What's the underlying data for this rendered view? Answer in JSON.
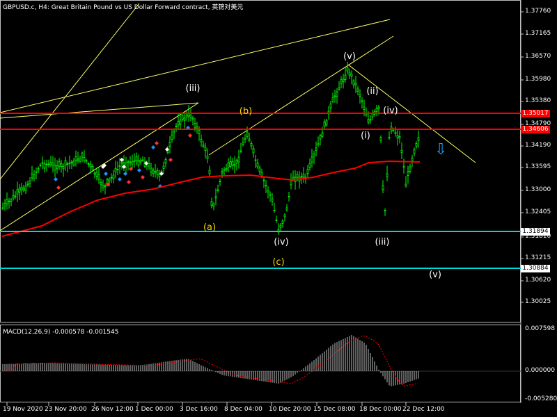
{
  "header": {
    "title": "GBPUSD.c, H4:  Great Britain Pound vs US Dollar Forward contract, 英镑对美元"
  },
  "macd": {
    "title": "MACD(12,26,9) -0.000578 -0.001545",
    "axis_labels": [
      "0.007598",
      "0.000000",
      "-0.005280"
    ]
  },
  "price_axis": {
    "labels": [
      "1.37760",
      "1.37165",
      "1.36570",
      "1.35980",
      "1.35380",
      "1.34790",
      "1.34190",
      "1.33595",
      "1.33000",
      "1.32405",
      "1.31810",
      "1.31215",
      "1.30620",
      "1.30025"
    ]
  },
  "levels": [
    {
      "label": "1.35017",
      "color": "#ff0000",
      "bg": "#ff0000",
      "fg": "#ffffff"
    },
    {
      "label": "1.34606",
      "color": "#ff0000",
      "bg": "#ff0000",
      "fg": "#ffffff"
    },
    {
      "label": "1.31894",
      "color": "#00d8d8",
      "bg": "#ffffff",
      "fg": "#000000"
    },
    {
      "label": "1.30884",
      "color": "#00d8d8",
      "bg": "#ffffff",
      "fg": "#000000"
    }
  ],
  "time_axis": {
    "labels": [
      "19 Nov 2020",
      "23 Nov 20:00",
      "26 Nov 12:00",
      "1 Dec 00:00",
      "3 Dec 16:00",
      "8 Dec 04:00",
      "10 Dec 20:00",
      "15 Dec 08:00",
      "18 Dec 00:00",
      "22 Dec 12:00"
    ]
  },
  "wave_labels": [
    {
      "text": "(iii)",
      "color": "#ffffff"
    },
    {
      "text": "(b)",
      "color": "#ffd700"
    },
    {
      "text": "(a)",
      "color": "#ffd700"
    },
    {
      "text": "(iv)",
      "color": "#ffffff"
    },
    {
      "text": "(c)",
      "color": "#ffd700"
    },
    {
      "text": "(v)",
      "color": "#ffffff"
    },
    {
      "text": "(ii)",
      "color": "#ffffff"
    },
    {
      "text": "(iv)",
      "color": "#ffffff"
    },
    {
      "text": "(i)",
      "color": "#ffffff"
    },
    {
      "text": "(iii)",
      "color": "#ffffff"
    },
    {
      "text": "(v)",
      "color": "#ffffff"
    }
  ],
  "colors": {
    "candle": "#00ff00",
    "ma": "#ff0000",
    "trendline": "#ffff66",
    "macd_hist": "#c0c0c0",
    "macd_signal": "#ff0000",
    "down_arrow": "#1e9fff"
  },
  "icons": {
    "signal_arrow": "down-arrow-icon"
  }
}
